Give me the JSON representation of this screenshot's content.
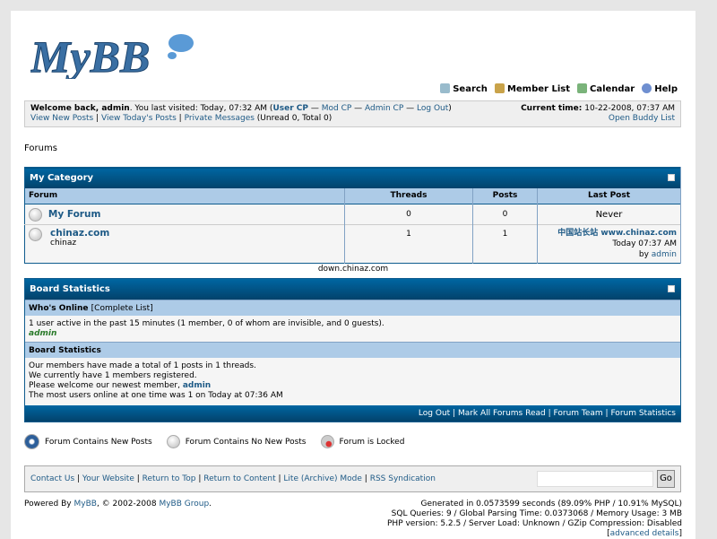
{
  "logo": "MyBB",
  "toplinks": [
    {
      "label": "Search",
      "icon": "magnifier-icon",
      "color": "#8ab"
    },
    {
      "label": "Member List",
      "icon": "members-icon",
      "color": "#c9a34a"
    },
    {
      "label": "Calendar",
      "icon": "calendar-icon",
      "color": "#7ab37a"
    },
    {
      "label": "Help",
      "icon": "help-icon",
      "color": "#6f8fd0"
    }
  ],
  "welcome": {
    "bold": "Welcome back, admin",
    "visited": ". You last visited: Today, 07:32 AM (",
    "user_cp": "User CP",
    "sep": " — ",
    "mod_cp": "Mod CP",
    "admin_cp": "Admin CP",
    "logout": "Log Out",
    "close": ")",
    "view_new": "View New Posts",
    "view_today": "View Today's Posts",
    "pm": "Private Messages",
    "pm_count": " (Unread 0, Total 0)",
    "time_label": "Current time:",
    "time": " 10-22-2008, 07:37 AM",
    "buddy": "Open Buddy List"
  },
  "forums_heading": "Forums",
  "category": {
    "title": "My Category",
    "columns": [
      "Forum",
      "Threads",
      "Posts",
      "Last Post"
    ],
    "rows": [
      {
        "name": "My Forum",
        "desc": "",
        "threads": "0",
        "posts": "0",
        "last": "Never"
      },
      {
        "name": "chinaz.com",
        "desc": "chinaz",
        "threads": "1",
        "posts": "1",
        "last_title": "中国站长站  www.chinaz.com",
        "last_time": "Today 07:37 AM",
        "last_by": "by ",
        "last_user": "admin"
      }
    ]
  },
  "watermark": "down.chinaz.com",
  "board": {
    "title": "Board Statistics",
    "whos_online": "Who's Online",
    "complete_list": "[Complete List]",
    "online_text": "1 user active in the past 15 minutes (1 member, 0 of whom are invisible, and 0 guests).",
    "online_user": "admin",
    "stats_heading": "Board Statistics",
    "lines": [
      "Our members have made a total of 1 posts in 1 threads.",
      "We currently have 1 members registered."
    ],
    "newest": "Please welcome our newest member, ",
    "newest_user": "admin",
    "most": "The most users online at one time was 1 on Today at 07:36 AM",
    "footer_links": [
      "Log Out",
      "Mark All Forums Read",
      "Forum Team",
      "Forum Statistics"
    ]
  },
  "legend": [
    "Forum Contains New Posts",
    "Forum Contains No New Posts",
    "Forum is Locked"
  ],
  "footer": {
    "links": [
      "Contact Us",
      "Your Website",
      "Return to Top",
      "Return to Content",
      "Lite (Archive) Mode",
      "RSS Syndication"
    ],
    "go": "Go",
    "search_value": ""
  },
  "powered": {
    "pre": "Powered By ",
    "mybb": "MyBB",
    "mid": ", © 2002-2008 ",
    "group": "MyBB Group",
    "end": "."
  },
  "stats": [
    "Generated in 0.0573599 seconds (89.09% PHP / 10.91% MySQL)",
    "SQL Queries: 9 / Global Parsing Time: 0.0373068 / Memory Usage: 3 MB",
    "PHP version: 5.2.5 / Server Load: Unknown / GZip Compression: Disabled"
  ],
  "advanced": "advanced details"
}
